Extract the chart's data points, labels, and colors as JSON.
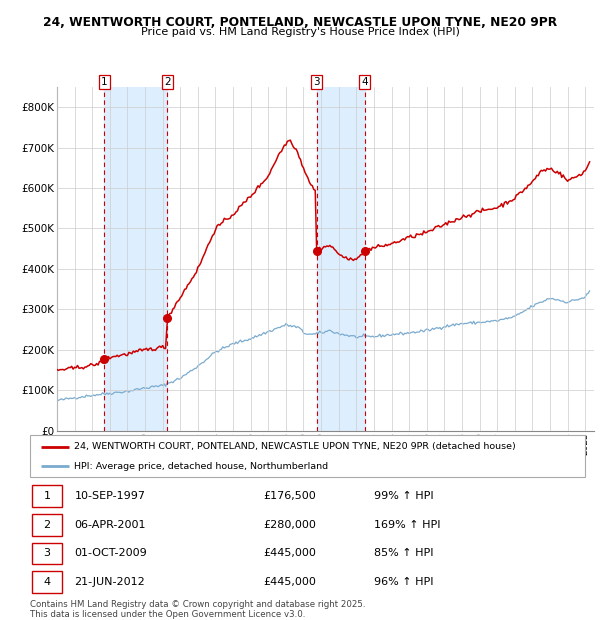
{
  "title_line1": "24, WENTWORTH COURT, PONTELAND, NEWCASTLE UPON TYNE, NE20 9PR",
  "title_line2": "Price paid vs. HM Land Registry's House Price Index (HPI)",
  "ylim": [
    0,
    850000
  ],
  "yticks": [
    0,
    100000,
    200000,
    300000,
    400000,
    500000,
    600000,
    700000,
    800000
  ],
  "ytick_labels": [
    "£0",
    "£100K",
    "£200K",
    "£300K",
    "£400K",
    "£500K",
    "£600K",
    "£700K",
    "£800K"
  ],
  "red_line_color": "#cc0000",
  "blue_line_color": "#7aabcf",
  "vline_color": "#cc0000",
  "shade_color": "#ddeeff",
  "grid_color": "#cccccc",
  "transactions": [
    {
      "num": 1,
      "date_f": 1997.693,
      "price": 176500,
      "pct": "99%",
      "label": "10-SEP-1997",
      "price_label": "£176,500"
    },
    {
      "num": 2,
      "date_f": 2001.267,
      "price": 280000,
      "pct": "169%",
      "label": "06-APR-2001",
      "price_label": "£280,000"
    },
    {
      "num": 3,
      "date_f": 2009.748,
      "price": 445000,
      "pct": "85%",
      "label": "01-OCT-2009",
      "price_label": "£445,000"
    },
    {
      "num": 4,
      "date_f": 2012.472,
      "price": 445000,
      "pct": "96%",
      "label": "21-JUN-2012",
      "price_label": "£445,000"
    }
  ],
  "legend_red_label": "24, WENTWORTH COURT, PONTELAND, NEWCASTLE UPON TYNE, NE20 9PR (detached house)",
  "legend_blue_label": "HPI: Average price, detached house, Northumberland",
  "footer": "Contains HM Land Registry data © Crown copyright and database right 2025.\nThis data is licensed under the Open Government Licence v3.0.",
  "hpi_anchors": {
    "1995.0": 75000,
    "1996.0": 82000,
    "1997.0": 88000,
    "1998.0": 93000,
    "1999.0": 98000,
    "2000.0": 106000,
    "2001.0": 112000,
    "2002.0": 130000,
    "2003.0": 160000,
    "2004.0": 195000,
    "2005.0": 215000,
    "2006.0": 228000,
    "2007.0": 245000,
    "2008.0": 262000,
    "2008.75": 255000,
    "2009.0": 242000,
    "2009.5": 238000,
    "2010.0": 242000,
    "2010.5": 248000,
    "2011.0": 240000,
    "2012.0": 232000,
    "2013.0": 233000,
    "2014.0": 238000,
    "2015.0": 242000,
    "2016.0": 248000,
    "2017.0": 258000,
    "2018.0": 265000,
    "2019.0": 268000,
    "2020.0": 272000,
    "2021.0": 282000,
    "2022.0": 308000,
    "2023.0": 328000,
    "2024.0": 318000,
    "2025.0": 330000,
    "2025.3": 348000
  },
  "red_anchors": {
    "1995.0": 150000,
    "1996.0": 155000,
    "1997.0": 162000,
    "1997.65": 170000,
    "1997.693": 176500,
    "1997.75": 178000,
    "1998.0": 182000,
    "1999.0": 190000,
    "2000.0": 200000,
    "2001.2": 208000,
    "2001.267": 280000,
    "2002.0": 330000,
    "2003.0": 400000,
    "2004.0": 500000,
    "2005.0": 535000,
    "2006.0": 580000,
    "2007.0": 630000,
    "2007.5": 675000,
    "2008.0": 710000,
    "2008.2": 720000,
    "2008.6": 695000,
    "2009.0": 650000,
    "2009.4": 610000,
    "2009.7": 590000,
    "2009.748": 445000,
    "2010.0": 452000,
    "2010.5": 458000,
    "2011.0": 438000,
    "2011.5": 422000,
    "2012.3": 432000,
    "2012.472": 445000,
    "2013.0": 452000,
    "2014.0": 462000,
    "2015.0": 478000,
    "2016.0": 490000,
    "2017.0": 510000,
    "2018.0": 528000,
    "2019.0": 542000,
    "2020.0": 552000,
    "2021.0": 575000,
    "2022.0": 615000,
    "2022.5": 642000,
    "2023.0": 648000,
    "2023.5": 638000,
    "2024.0": 618000,
    "2024.5": 628000,
    "2025.0": 642000,
    "2025.3": 668000
  }
}
